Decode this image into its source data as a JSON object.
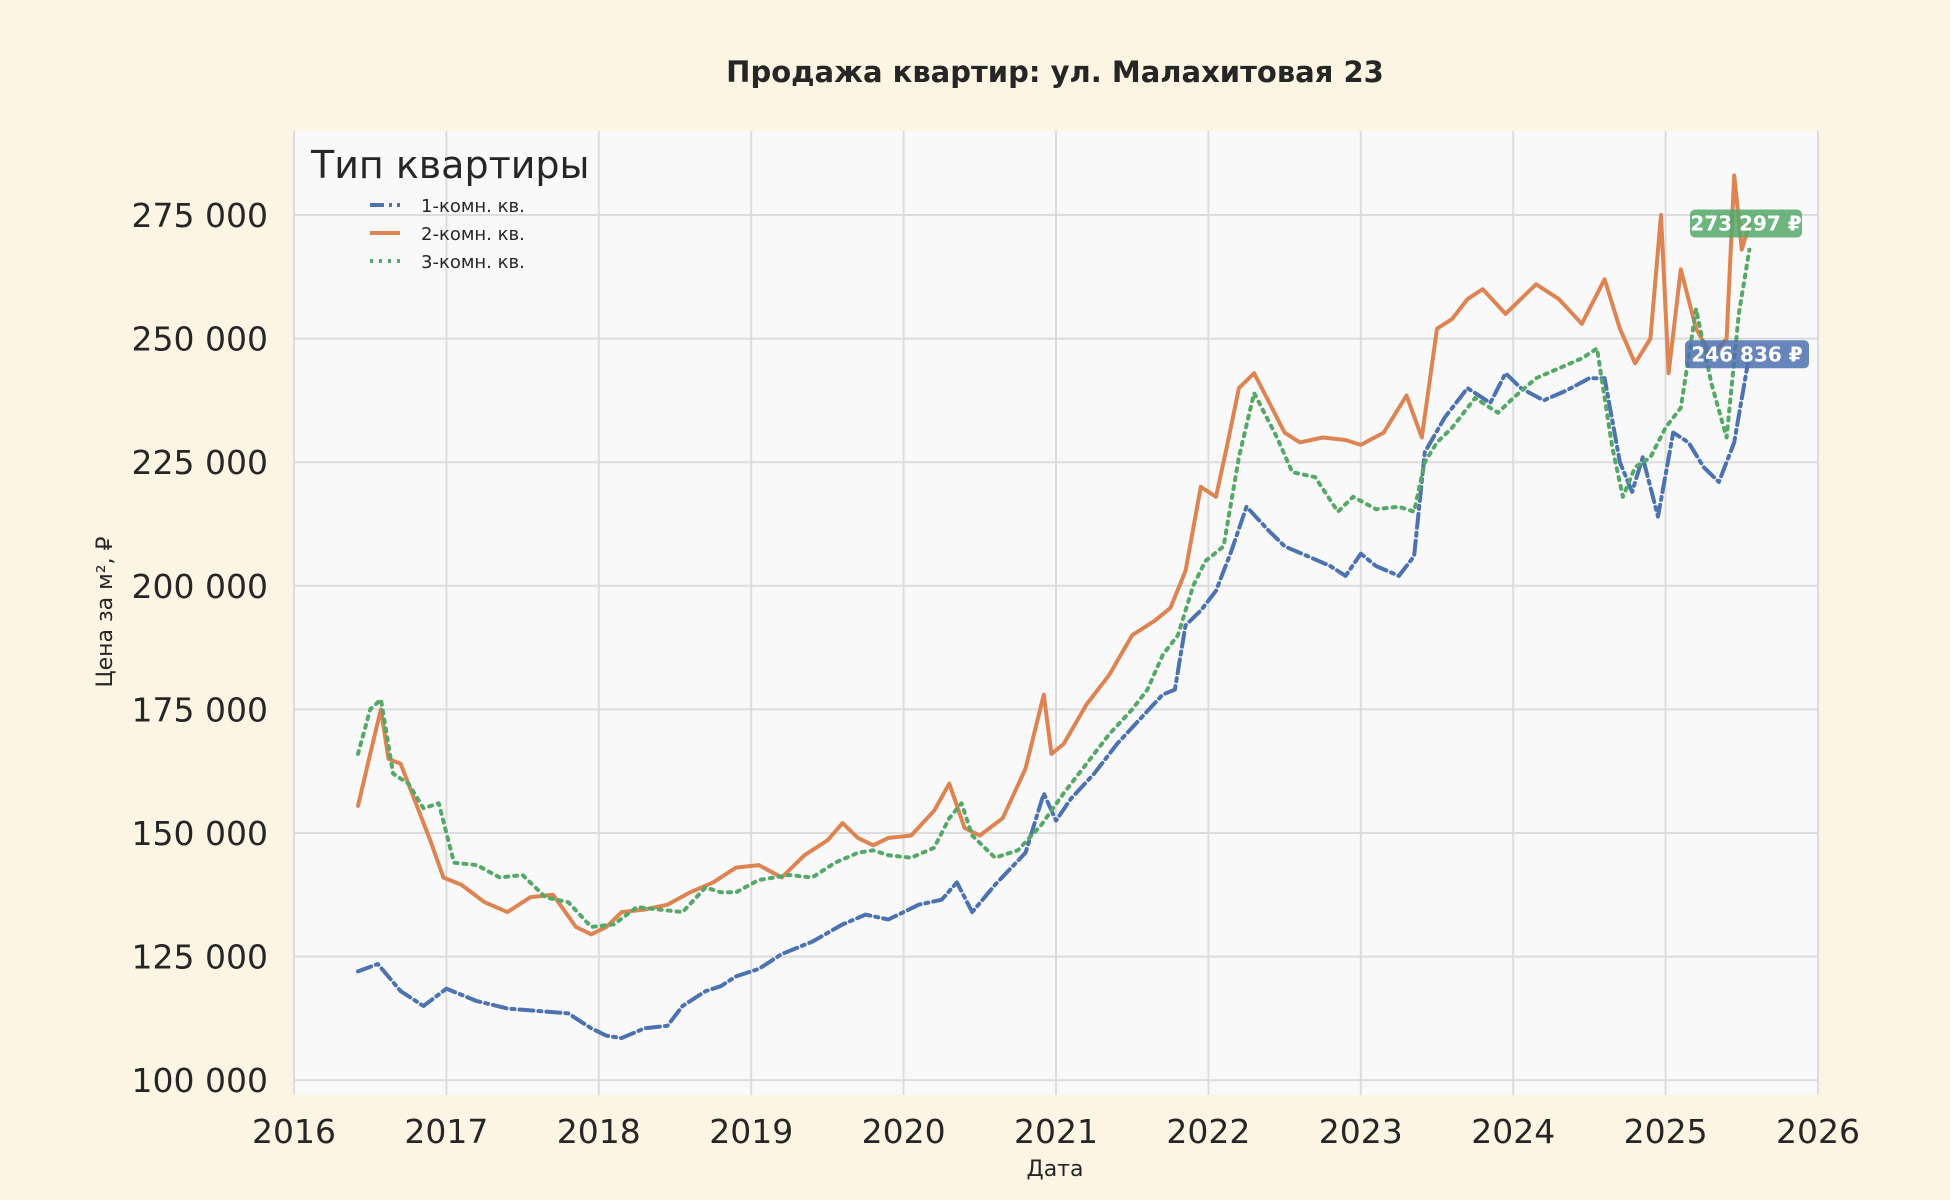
{
  "chart_data": {
    "type": "line",
    "title": "Продажа квартир: ул. Малахитовая 23",
    "xlabel": "Дата",
    "ylabel": "Цена за м², ₽",
    "xlim": [
      2016.0,
      2026.0
    ],
    "ylim": [
      97000,
      292000
    ],
    "x_ticks": [
      2016,
      2017,
      2018,
      2019,
      2020,
      2021,
      2022,
      2023,
      2024,
      2025,
      2026
    ],
    "x_tick_labels": [
      "2016",
      "2017",
      "2018",
      "2019",
      "2020",
      "2021",
      "2022",
      "2023",
      "2024",
      "2025",
      "2026"
    ],
    "y_ticks": [
      100000,
      125000,
      150000,
      175000,
      200000,
      225000,
      250000,
      275000
    ],
    "y_tick_labels": [
      "100 000",
      "125 000",
      "150 000",
      "175 000",
      "200 000",
      "225 000",
      "250 000",
      "275 000"
    ],
    "grid": true,
    "legend": {
      "title": "Тип квартиры",
      "position": "top-left"
    },
    "series": [
      {
        "name": "1-комн. кв.",
        "color": "#4c72b0",
        "dash": "dashdot",
        "x": [
          2016.42,
          2016.55,
          2016.7,
          2016.85,
          2017.0,
          2017.2,
          2017.4,
          2017.6,
          2017.8,
          2017.95,
          2018.05,
          2018.15,
          2018.3,
          2018.45,
          2018.55,
          2018.7,
          2018.8,
          2018.9,
          2019.05,
          2019.2,
          2019.4,
          2019.6,
          2019.75,
          2019.9,
          2020.1,
          2020.25,
          2020.35,
          2020.45,
          2020.6,
          2020.8,
          2020.92,
          2021.0,
          2021.1,
          2021.25,
          2021.4,
          2021.55,
          2021.7,
          2021.78,
          2021.85,
          2021.95,
          2022.05,
          2022.15,
          2022.25,
          2022.4,
          2022.5,
          2022.65,
          2022.8,
          2022.9,
          2023.0,
          2023.1,
          2023.25,
          2023.35,
          2023.42,
          2023.55,
          2023.7,
          2023.85,
          2023.95,
          2024.05,
          2024.2,
          2024.35,
          2024.5,
          2024.6,
          2024.7,
          2024.78,
          2024.85,
          2024.95,
          2025.05,
          2025.15,
          2025.25,
          2025.35,
          2025.45,
          2025.55
        ],
        "y": [
          122000,
          123500,
          118000,
          115000,
          118500,
          116000,
          114500,
          114000,
          113500,
          110500,
          109000,
          108500,
          110500,
          111000,
          115000,
          118000,
          119000,
          121000,
          122500,
          125500,
          128000,
          131500,
          133500,
          132500,
          135500,
          136500,
          140000,
          134000,
          139500,
          146000,
          158000,
          152500,
          157000,
          162000,
          168000,
          173000,
          178000,
          179000,
          192000,
          195000,
          199000,
          207000,
          216000,
          211000,
          208000,
          206000,
          204000,
          202000,
          206500,
          204000,
          202000,
          206000,
          227000,
          234000,
          240000,
          237000,
          243000,
          240000,
          237500,
          239500,
          242000,
          242000,
          225000,
          219000,
          226000,
          214000,
          231000,
          229000,
          224000,
          221000,
          229000,
          246836
        ]
      },
      {
        "name": "2-комн. кв.",
        "color": "#dd8452",
        "dash": "solid",
        "x": [
          2016.42,
          2016.5,
          2016.57,
          2016.62,
          2016.7,
          2016.8,
          2016.9,
          2016.98,
          2017.1,
          2017.25,
          2017.4,
          2017.55,
          2017.7,
          2017.85,
          2017.95,
          2018.05,
          2018.15,
          2018.3,
          2018.45,
          2018.6,
          2018.75,
          2018.9,
          2019.05,
          2019.2,
          2019.35,
          2019.5,
          2019.6,
          2019.7,
          2019.8,
          2019.9,
          2020.05,
          2020.2,
          2020.3,
          2020.4,
          2020.5,
          2020.65,
          2020.8,
          2020.92,
          2020.97,
          2021.05,
          2021.2,
          2021.35,
          2021.5,
          2021.65,
          2021.75,
          2021.85,
          2021.95,
          2022.05,
          2022.12,
          2022.2,
          2022.3,
          2022.4,
          2022.5,
          2022.6,
          2022.75,
          2022.9,
          2023.0,
          2023.15,
          2023.3,
          2023.4,
          2023.5,
          2023.6,
          2023.7,
          2023.8,
          2023.95,
          2024.05,
          2024.15,
          2024.3,
          2024.45,
          2024.6,
          2024.7,
          2024.8,
          2024.9,
          2024.97,
          2025.02,
          2025.1,
          2025.2,
          2025.3,
          2025.4,
          2025.45,
          2025.5,
          2025.55
        ],
        "y": [
          155500,
          166000,
          175000,
          165000,
          164000,
          156000,
          148000,
          141000,
          139500,
          136000,
          134000,
          137000,
          137500,
          131000,
          129500,
          131000,
          134000,
          134500,
          135500,
          138000,
          140000,
          143000,
          143500,
          141000,
          145500,
          148500,
          152000,
          149000,
          147500,
          149000,
          149500,
          154500,
          160000,
          151000,
          149500,
          153000,
          163000,
          178000,
          166000,
          168000,
          176000,
          182000,
          190000,
          193000,
          195500,
          203000,
          220000,
          218000,
          228000,
          240000,
          243000,
          237000,
          231000,
          229000,
          230000,
          229500,
          228500,
          231000,
          238500,
          230000,
          252000,
          254000,
          258000,
          260000,
          255000,
          258000,
          261000,
          258000,
          253000,
          262000,
          252000,
          245000,
          250000,
          275000,
          243000,
          264000,
          252000,
          246500,
          250000,
          283000,
          268000,
          273297
        ]
      },
      {
        "name": "3-комн. кв.",
        "color": "#55a868",
        "dash": "dotted",
        "x": [
          2016.42,
          2016.5,
          2016.57,
          2016.65,
          2016.75,
          2016.85,
          2016.95,
          2017.05,
          2017.2,
          2017.35,
          2017.5,
          2017.65,
          2017.8,
          2017.95,
          2018.1,
          2018.25,
          2018.4,
          2018.55,
          2018.7,
          2018.8,
          2018.9,
          2019.05,
          2019.25,
          2019.4,
          2019.55,
          2019.7,
          2019.8,
          2019.9,
          2020.05,
          2020.2,
          2020.3,
          2020.38,
          2020.45,
          2020.6,
          2020.75,
          2020.9,
          2021.05,
          2021.2,
          2021.35,
          2021.5,
          2021.6,
          2021.7,
          2021.8,
          2021.9,
          2021.98,
          2022.1,
          2022.2,
          2022.3,
          2022.45,
          2022.55,
          2022.7,
          2022.85,
          2022.95,
          2023.1,
          2023.25,
          2023.35,
          2023.42,
          2023.5,
          2023.6,
          2023.75,
          2023.9,
          2024.0,
          2024.15,
          2024.3,
          2024.45,
          2024.55,
          2024.65,
          2024.72,
          2024.8,
          2024.9,
          2025.0,
          2025.1,
          2025.2,
          2025.3,
          2025.4,
          2025.48,
          2025.55
        ],
        "y": [
          166000,
          175000,
          177000,
          162000,
          160000,
          155000,
          156000,
          144000,
          143500,
          141000,
          141500,
          137000,
          136000,
          131000,
          131500,
          135000,
          134500,
          134000,
          139000,
          138000,
          138000,
          140500,
          141500,
          141000,
          144000,
          146000,
          146500,
          145500,
          145000,
          147000,
          153000,
          156000,
          149500,
          145000,
          146500,
          151500,
          158000,
          164000,
          170000,
          175000,
          179000,
          186000,
          190000,
          200000,
          205000,
          208000,
          226000,
          239000,
          230000,
          223000,
          222000,
          215000,
          218000,
          215500,
          216000,
          215000,
          225000,
          229000,
          232000,
          238000,
          235000,
          238000,
          242000,
          244000,
          246000,
          248000,
          228000,
          218000,
          224000,
          226000,
          232000,
          236000,
          256000,
          241000,
          230000,
          255000,
          268000
        ]
      }
    ],
    "end_labels": [
      {
        "series": "2-комн. кв.",
        "text": "273 297 ₽",
        "value": 273297,
        "color": "#55a868"
      },
      {
        "series": "1-комн. кв.",
        "text": "246 836 ₽",
        "value": 246836,
        "color": "#4c72b0"
      }
    ]
  }
}
